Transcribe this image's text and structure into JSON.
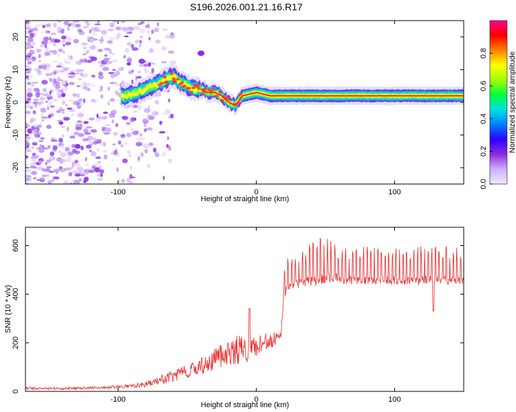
{
  "title": "S196.2026.001.21.16.R17",
  "colors": {
    "line": "#e83a3a",
    "frame": "#000000",
    "background": "#ffffff"
  },
  "chart_data": [
    {
      "type": "heatmap",
      "name": "spectrogram",
      "xlabel": "Height of straight line (km)",
      "ylabel": "Frequency (Hz)",
      "xlim": [
        -167,
        150
      ],
      "ylim": [
        -25,
        25
      ],
      "xticks": [
        -100,
        0,
        100
      ],
      "yticks": [
        -20,
        -10,
        0,
        10,
        20
      ],
      "colorbar": {
        "label": "Normalized spectral amplitude",
        "range": [
          0,
          1
        ],
        "ticks": [
          "0.0",
          "0.2",
          "0.4",
          "0.6",
          "0.8"
        ],
        "tick_values": [
          0.0,
          0.2,
          0.4,
          0.6,
          0.8
        ],
        "colors": [
          "#f0e6ff",
          "#d0b0ff",
          "#8a2be2",
          "#3000ff",
          "#0080ff",
          "#00e0e0",
          "#00ff40",
          "#a0ff00",
          "#ffff00",
          "#ff8000",
          "#ff0000",
          "#ff0090"
        ]
      },
      "ridge": {
        "x": [
          -95,
          -85,
          -80,
          -75,
          -70,
          -65,
          -60,
          -55,
          -50,
          -45,
          -40,
          -35,
          -30,
          -25,
          -20,
          -15,
          -10,
          0,
          10,
          30,
          60,
          100,
          150
        ],
        "y": [
          2,
          3,
          4,
          5,
          6,
          7,
          8,
          6,
          5,
          4,
          4,
          3,
          3,
          2,
          0,
          -1,
          2,
          3,
          2,
          2,
          2,
          2,
          2
        ]
      },
      "noise_region": {
        "x_from": -167,
        "x_to": -80
      }
    },
    {
      "type": "line",
      "name": "snr",
      "xlabel": "Height of straight line (km)",
      "ylabel": "SNR (10 * v/v)",
      "xlim": [
        -167,
        150
      ],
      "ylim": [
        0,
        675
      ],
      "xticks": [
        -100,
        0,
        100
      ],
      "yticks": [
        0,
        200,
        400,
        600
      ],
      "envelope": {
        "x": [
          -167,
          -140,
          -110,
          -90,
          -80,
          -70,
          -60,
          -50,
          -40,
          -30,
          -20,
          -10,
          -5,
          0,
          5,
          10,
          18,
          20,
          22,
          25,
          35,
          45,
          55,
          65,
          80,
          100,
          120,
          140,
          150
        ],
        "base": [
          12,
          10,
          14,
          20,
          25,
          40,
          55,
          75,
          95,
          120,
          145,
          160,
          150,
          170,
          185,
          200,
          220,
          370,
          420,
          430,
          440,
          450,
          460,
          450,
          450,
          450,
          450,
          450,
          450
        ],
        "amp": [
          10,
          10,
          12,
          15,
          25,
          35,
          50,
          60,
          80,
          90,
          110,
          120,
          90,
          90,
          80,
          70,
          50,
          120,
          130,
          140,
          150,
          190,
          160,
          140,
          150,
          150,
          150,
          150,
          140
        ]
      }
    }
  ]
}
